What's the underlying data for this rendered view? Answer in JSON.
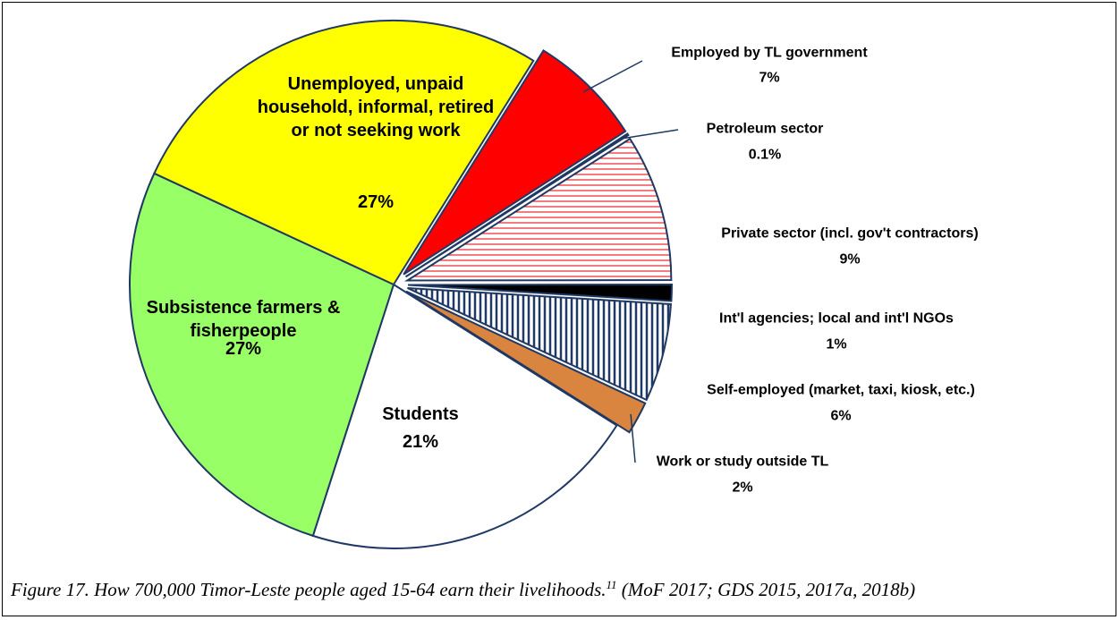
{
  "chart_data": {
    "type": "pie",
    "categories": [
      "Employed by TL government",
      "Petroleum sector",
      "Private sector (incl. gov't contractors)",
      "Int'l agencies; local and int'l NGOs",
      "Self-employed (market, taxi, kiosk, etc.)",
      "Work or study outside TL",
      "Students",
      "Subsistence farmers & fisherpeople",
      "Unemployed, unpaid household, informal, retired or not seeking work"
    ],
    "values": [
      7,
      0.1,
      9,
      1,
      6,
      2,
      21,
      27,
      27
    ],
    "value_labels": [
      "7%",
      "0.1%",
      "9%",
      "1%",
      "6%",
      "2%",
      "21%",
      "27%",
      "27%"
    ],
    "colors": [
      "#ff0000",
      "#ffffff",
      "#e8262a",
      "#000000",
      "#1f3864",
      "#d9843f",
      "#ffffff",
      "#99ff66",
      "#ffff00"
    ],
    "hatch": [
      null,
      null,
      "horizontal",
      null,
      "vertical",
      null,
      null,
      null,
      null
    ],
    "caption": "Figure 17. How 700,000 Timor-Leste people aged 15-64 earn their livelihoods.",
    "caption_note": "11",
    "caption_source": "(MoF 2017; GDS 2015, 2017a, 2018b)"
  }
}
